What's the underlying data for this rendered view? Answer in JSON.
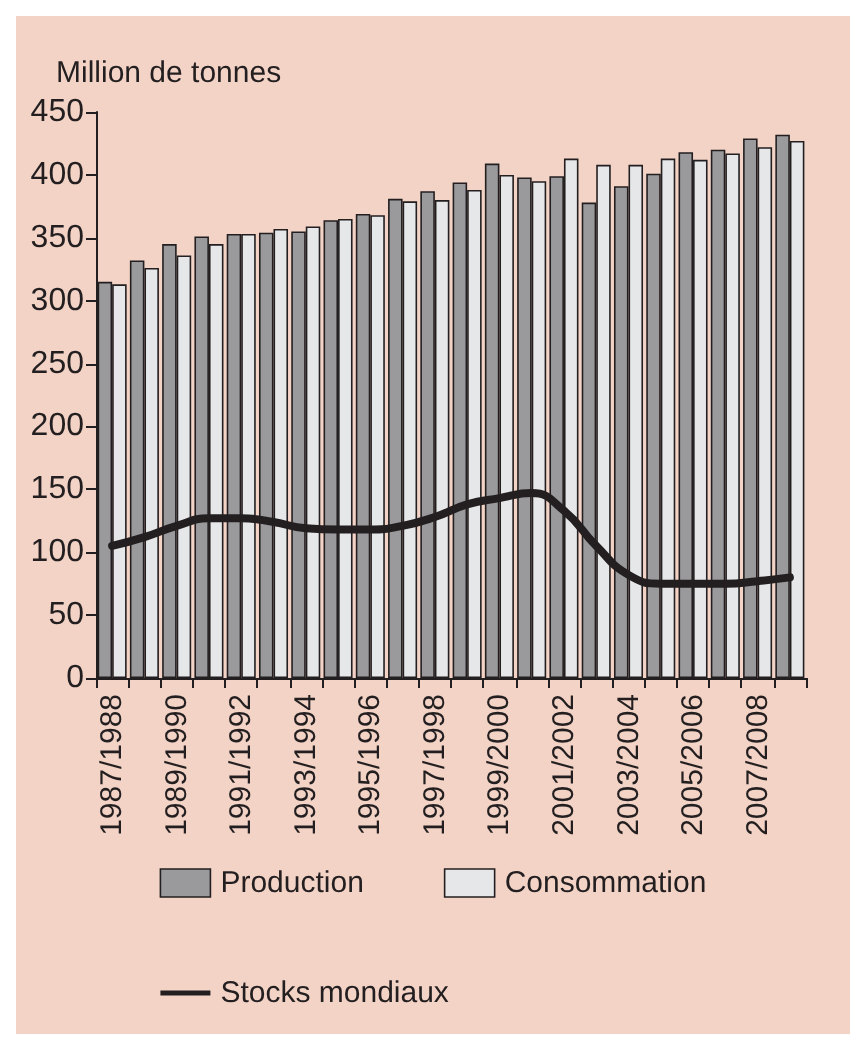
{
  "chart_data": {
    "type": "bar",
    "ylabel": "Million de tonnes",
    "categories": [
      "1987/1988",
      null,
      "1989/1990",
      null,
      "1991/1992",
      null,
      "1993/1994",
      null,
      "1995/1996",
      null,
      "1997/1998",
      null,
      "1999/2000",
      null,
      "2001/2002",
      null,
      "2003/2004",
      null,
      "2005/2006",
      null,
      "2007/2008",
      null
    ],
    "series": [
      {
        "name": "Production",
        "color": "#9a9a9c",
        "values": [
          315,
          332,
          345,
          351,
          353,
          354,
          355,
          364,
          369,
          381,
          387,
          394,
          409,
          398,
          399,
          378,
          391,
          401,
          418,
          420,
          429,
          432
        ]
      },
      {
        "name": "Consommation",
        "color": "#e6e7e9",
        "values": [
          313,
          326,
          336,
          345,
          353,
          357,
          359,
          365,
          368,
          379,
          380,
          388,
          400,
          395,
          413,
          408,
          408,
          413,
          412,
          417,
          422,
          427
        ]
      },
      {
        "name": "Stocks mondiaux",
        "type": "line",
        "color": "#231f20",
        "values": [
          105,
          112,
          121,
          127,
          127,
          124,
          119,
          118,
          118,
          121,
          128,
          138,
          143,
          147,
          133,
          105,
          82,
          75,
          75,
          75,
          77,
          80
        ]
      }
    ],
    "ylim": [
      0,
      450
    ],
    "yticks": [
      0,
      50,
      100,
      150,
      200,
      250,
      300,
      350,
      400,
      450
    ],
    "grid": false,
    "legend": "bottom",
    "marker": "none"
  }
}
